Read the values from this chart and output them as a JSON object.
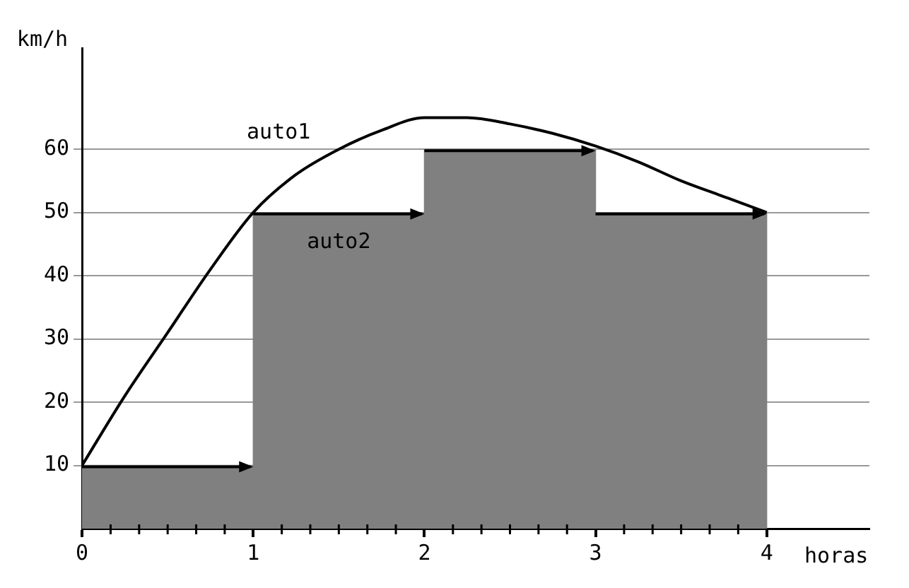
{
  "chart_data": {
    "type": "histogram",
    "xlabel": "horas",
    "ylabel": "km/h",
    "series": [
      {
        "name": "auto2",
        "type": "histogram",
        "color": "#808080",
        "bins": [
          0,
          1,
          2,
          3,
          4
        ],
        "values": [
          10,
          50,
          60,
          50
        ]
      },
      {
        "name": "auto1",
        "type": "line",
        "color": "#000000",
        "x": [
          0,
          0.25,
          0.5,
          0.75,
          1,
          1.25,
          1.5,
          1.75,
          2,
          2.25,
          2.5,
          2.75,
          3,
          3.25,
          3.5,
          3.75,
          4
        ],
        "values": [
          10,
          21,
          31,
          41,
          50,
          56,
          60,
          63,
          65,
          65,
          64,
          62.5,
          60.5,
          58,
          55,
          52.5,
          50
        ]
      }
    ],
    "xlim": [
      0,
      4.6
    ],
    "ylim": [
      0,
      76
    ],
    "xticks": [
      0,
      {
        "value": 0.1667,
        "label": null
      },
      {
        "value": 0.3333,
        "label": null
      },
      {
        "value": 0.5,
        "label": null
      },
      {
        "value": 0.6667,
        "label": null
      },
      {
        "value": 0.8333,
        "label": null
      },
      1,
      {
        "value": 1.1667,
        "label": null
      },
      {
        "value": 1.3333,
        "label": null
      },
      {
        "value": 1.5,
        "label": null
      },
      {
        "value": 1.6667,
        "label": null
      },
      {
        "value": 1.8333,
        "label": null
      },
      2,
      {
        "value": 2.1667,
        "label": null
      },
      {
        "value": 2.3333,
        "label": null
      },
      {
        "value": 2.5,
        "label": null
      },
      {
        "value": 2.6667,
        "label": null
      },
      {
        "value": 2.8333,
        "label": null
      },
      3,
      {
        "value": 3.1667,
        "label": null
      },
      {
        "value": 3.3333,
        "label": null
      },
      {
        "value": 3.5,
        "label": null
      },
      {
        "value": 3.6667,
        "label": null
      },
      {
        "value": 3.8333,
        "label": null
      },
      4
    ],
    "yticks": [
      10,
      20,
      30,
      40,
      50,
      60
    ],
    "grid": "y",
    "legend": false,
    "marker": "none",
    "line_style": "solid"
  }
}
